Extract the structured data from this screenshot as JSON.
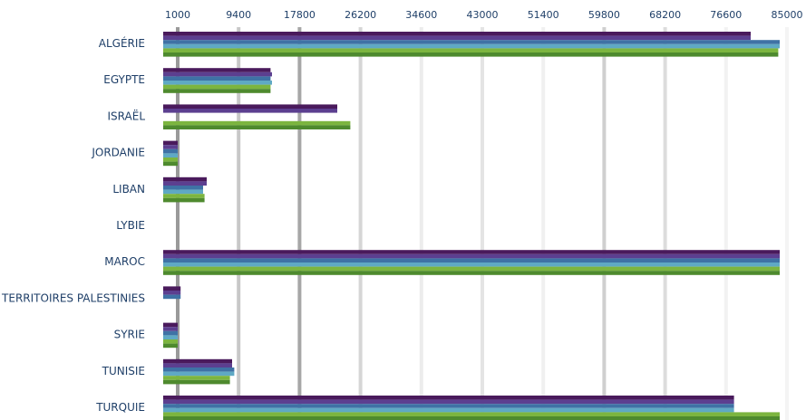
{
  "chart_data": {
    "type": "bar",
    "orientation": "horizontal",
    "title": "",
    "xlabel": "",
    "ylabel": "",
    "x_ticks": [
      "1000",
      "9400",
      "17800",
      "26200",
      "34600",
      "43000",
      "51400",
      "59800",
      "68200",
      "76600",
      "85000"
    ],
    "xlim": [
      1000,
      85000
    ],
    "x_axis_position": "top",
    "grid": true,
    "legend": "none",
    "categories": [
      "ALGÉRIE",
      "EGYPTE",
      "ISRAËL",
      "JORDANIE",
      "LIBAN",
      "LYBIE",
      "MAROC",
      "TERRITOIRES PALESTINIES",
      "SYRIE",
      "TUNISIE",
      "TURQUIE"
    ],
    "series": [
      {
        "color": "#4a1a5c",
        "values": [
          80000,
          13800,
          23000,
          1000,
          5000,
          0,
          84000,
          1400,
          1000,
          8500,
          77700
        ]
      },
      {
        "color": "#5c3f90",
        "values": [
          80000,
          14000,
          23000,
          1000,
          5000,
          0,
          84000,
          1400,
          1000,
          8500,
          77700
        ]
      },
      {
        "color": "#3f72a5",
        "values": [
          84000,
          13800,
          0,
          1000,
          4500,
          0,
          84000,
          1400,
          1000,
          8800,
          77700
        ]
      },
      {
        "color": "#5fa9c4",
        "values": [
          84000,
          14000,
          0,
          1000,
          4500,
          0,
          84000,
          0,
          1000,
          8800,
          77700
        ]
      },
      {
        "color": "#7cb53f",
        "values": [
          83800,
          13800,
          24800,
          1000,
          4700,
          0,
          84000,
          0,
          1000,
          8200,
          84000
        ]
      },
      {
        "color": "#4e8a2e",
        "values": [
          83800,
          13800,
          24800,
          1000,
          4700,
          0,
          84000,
          0,
          1000,
          8200,
          84000
        ]
      }
    ]
  }
}
